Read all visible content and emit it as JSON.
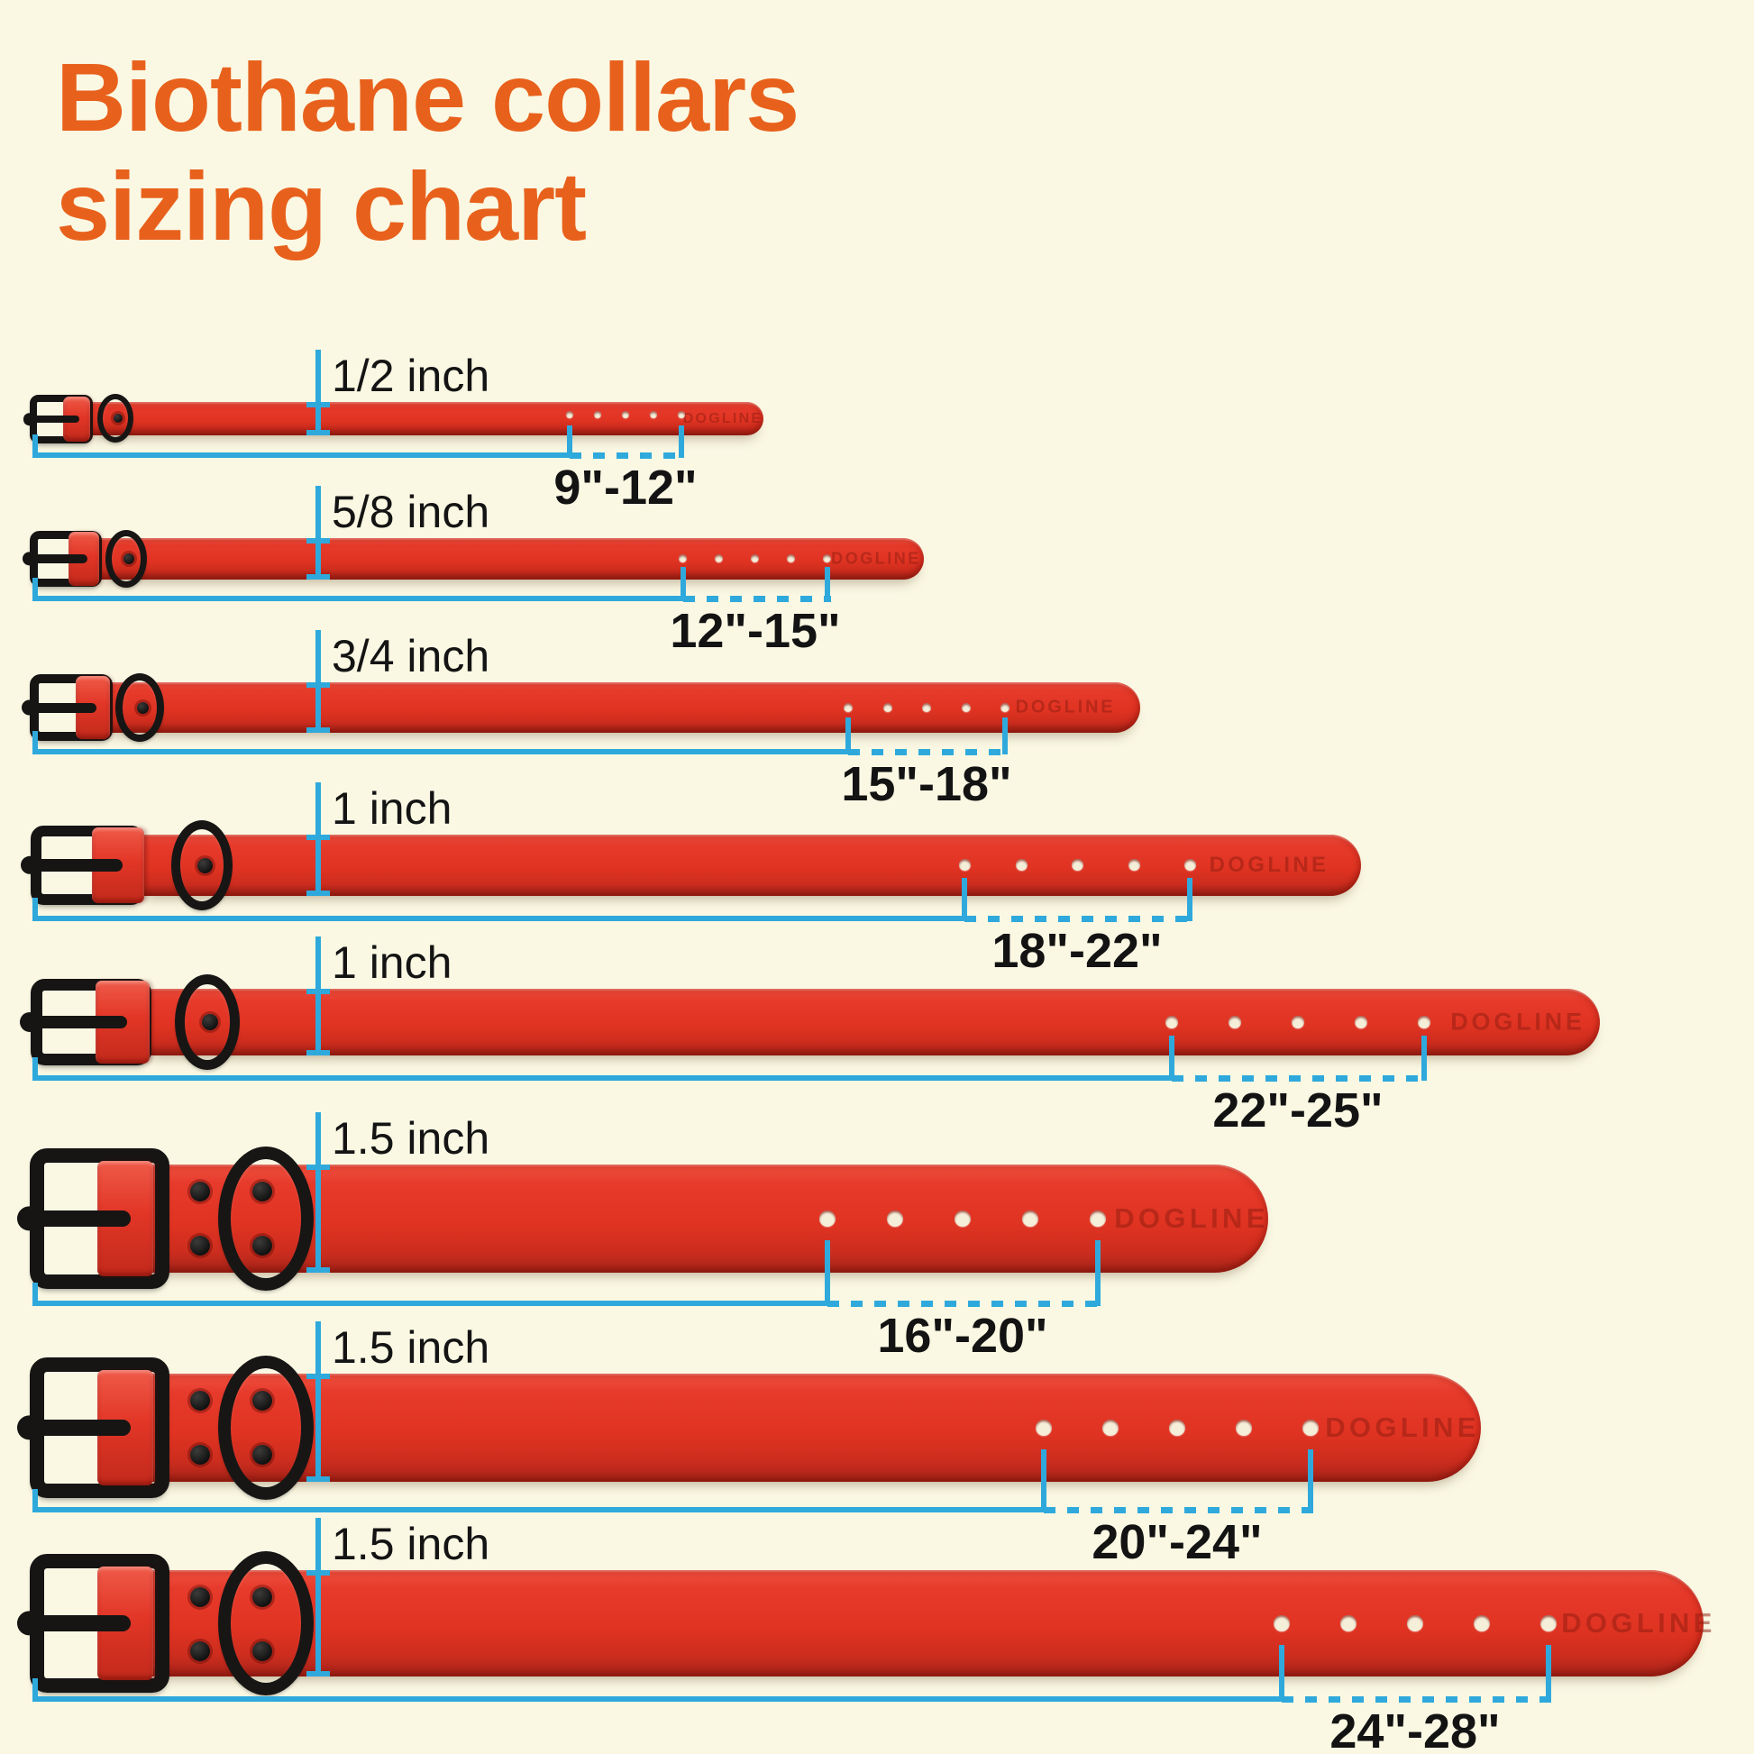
{
  "title": {
    "line1": "Biothane collars",
    "line2": "sizing chart"
  },
  "brand_emboss": "DOGLINE",
  "colors": {
    "background": "#FAF8E3",
    "title_orange": "#E8611C",
    "collar_red": "#E23427",
    "hardware_black": "#161514",
    "measure_blue": "#2FA9DC",
    "label_text": "#141414"
  },
  "rows": [
    {
      "width_label": "1/2 inch",
      "size_range": "9\"-12\""
    },
    {
      "width_label": "5/8 inch",
      "size_range": "12\"-15\""
    },
    {
      "width_label": "3/4 inch",
      "size_range": "15\"-18\""
    },
    {
      "width_label": "1 inch",
      "size_range": "18\"-22\""
    },
    {
      "width_label": "1 inch",
      "size_range": "22\"-25\""
    },
    {
      "width_label": "1.5 inch",
      "size_range": "16\"-20\""
    },
    {
      "width_label": "1.5 inch",
      "size_range": "20\"-24\""
    },
    {
      "width_label": "1.5 inch",
      "size_range": "24\"-28\""
    }
  ]
}
